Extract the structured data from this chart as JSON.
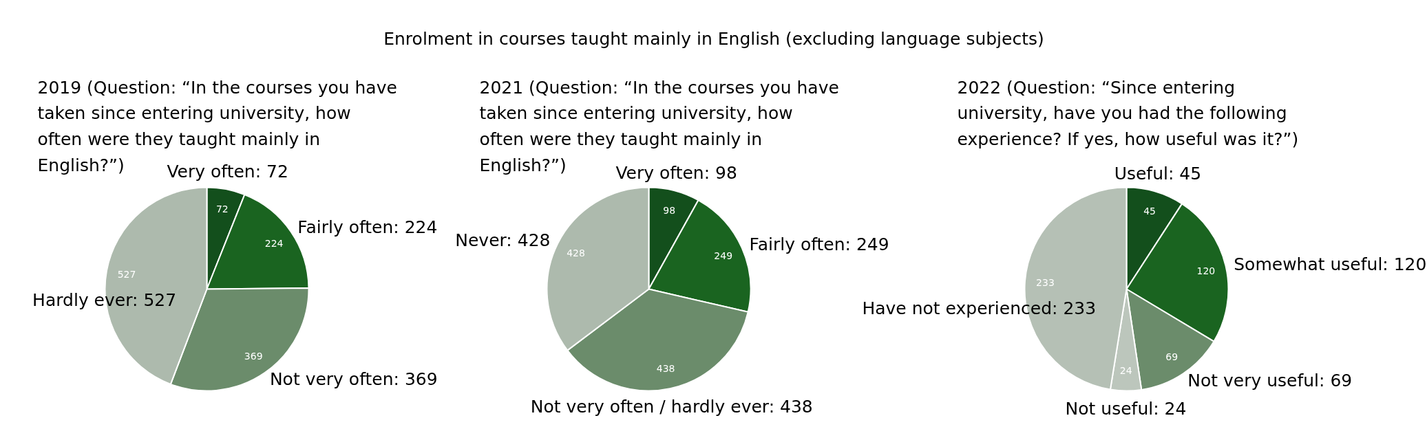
{
  "chart_data": [
    {
      "type": "pie",
      "subtitle": "2019 (Question: “In the courses you have taken since entering university, how often were they taught mainly in English?”)",
      "categories": [
        "Very often: 72",
        "Fairly often: 224",
        "Not very often: 369",
        "Hardly ever: 527"
      ],
      "values": [
        72,
        224,
        369,
        527
      ],
      "colors": [
        "#134f1c",
        "#1a6420",
        "#6b8c6b",
        "#adbaad"
      ],
      "data_labels": true
    },
    {
      "type": "pie",
      "title": "Enrolment in courses taught mainly in English (excluding language subjects)",
      "subtitle": "2021 (Question: “In the courses you have taken since entering university, how often were they taught mainly in English?”)",
      "categories": [
        "Very often: 98",
        "Fairly often: 249",
        "Not very often / hardly ever: 438",
        "Never: 428"
      ],
      "values": [
        98,
        249,
        438,
        428
      ],
      "colors": [
        "#134f1c",
        "#1a6420",
        "#6b8c6b",
        "#adbaad"
      ],
      "data_labels": true
    },
    {
      "type": "pie",
      "subtitle": "2022 (Question: “Since entering university, have you had the following experience? If yes, how useful was it?”)",
      "categories": [
        "Useful: 45",
        "Somewhat useful: 120",
        "Not very useful: 69",
        "Not useful: 24",
        "Have not experienced: 233"
      ],
      "values": [
        45,
        120,
        69,
        24,
        233
      ],
      "colors": [
        "#134f1c",
        "#1a6420",
        "#6b8c6b",
        "#bcc6bc",
        "#b5c0b5"
      ],
      "data_labels": true
    }
  ]
}
